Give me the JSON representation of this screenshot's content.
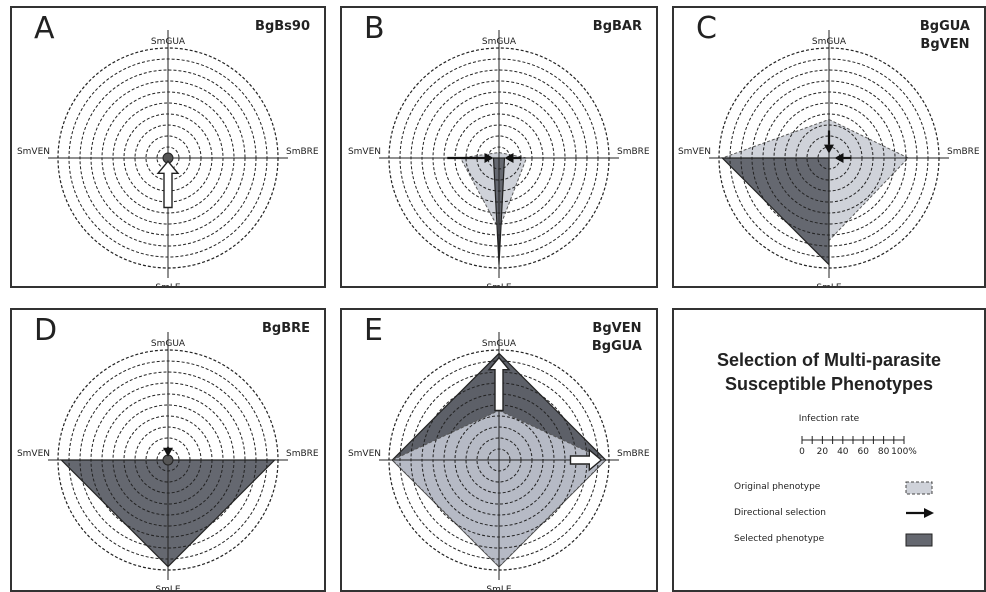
{
  "axes": {
    "top": "SmGUA",
    "left": "SmVEN",
    "right": "SmBRE",
    "bottom": "SmLE"
  },
  "panels": [
    {
      "letter": "A",
      "codes": [
        "BgBs90"
      ],
      "original": [
        0.03,
        0.03,
        0.03,
        0.03
      ],
      "selected": [
        0,
        0,
        0,
        0
      ],
      "arrows": [
        {
          "axis": "bottom",
          "from": 0.45,
          "to": 0.03,
          "style": "outline",
          "width": "thick"
        }
      ],
      "center_dot": true
    },
    {
      "letter": "B",
      "codes": [
        "BgBAR"
      ],
      "original": [
        0.05,
        0.35,
        0.25,
        0.65
      ],
      "selected": [
        0,
        0.05,
        0.05,
        0.97
      ],
      "arrows": [
        {
          "axis": "left",
          "from": 0.47,
          "to": 0.05,
          "style": "solid",
          "width": "thin"
        },
        {
          "axis": "right",
          "from": 0.2,
          "to": 0.05,
          "style": "solid",
          "width": "thin"
        }
      ],
      "center_dot": false
    },
    {
      "letter": "C",
      "codes": [
        "BgGUA",
        "BgVEN"
      ],
      "original": [
        0.35,
        0.97,
        0.72,
        0.75
      ],
      "selected": [
        0,
        0.97,
        0,
        0.97
      ],
      "arrows": [
        {
          "axis": "top",
          "from": 0.25,
          "to": 0.04,
          "style": "solid",
          "width": "thin"
        },
        {
          "axis": "right",
          "from": 0.2,
          "to": 0.05,
          "style": "solid",
          "width": "thin"
        }
      ],
      "center_dot": false
    },
    {
      "letter": "D",
      "codes": [
        "BgBRE"
      ],
      "original": [
        0.03,
        0.03,
        0.03,
        0.03
      ],
      "selected": [
        0,
        0.97,
        0.97,
        0.97
      ],
      "arrows": [
        {
          "axis": "top",
          "from": 0.12,
          "to": 0.03,
          "style": "solid",
          "width": "thin"
        }
      ],
      "center_dot": true
    },
    {
      "letter": "E",
      "codes": [
        "BgVEN",
        "BgGUA"
      ],
      "original": [
        0.45,
        0.97,
        0.97,
        0.97
      ],
      "selected": [
        0.97,
        0.97,
        0.97,
        0.97
      ],
      "arrows": [
        {
          "axis": "top",
          "from": 0.45,
          "to": 0.93,
          "style": "outline",
          "width": "thick"
        },
        {
          "axis": "right",
          "from": 0.65,
          "to": 0.93,
          "style": "outline",
          "width": "thick"
        }
      ],
      "center_dot": false
    }
  ],
  "legend": {
    "title_lines": [
      "Selection of Multi-parasite",
      "Susceptible Phenotypes"
    ],
    "scale_title": "Infection rate",
    "scale_ticks": [
      "0",
      "20",
      "40",
      "60",
      "80",
      "100%"
    ],
    "items": [
      {
        "label": "Original phenotype",
        "kind": "original"
      },
      {
        "label": "Directional selection",
        "kind": "arrow"
      },
      {
        "label": "Selected phenotype",
        "kind": "selected"
      }
    ]
  },
  "colors": {
    "original_fill": "#cfd2d9",
    "selected_fill": "#656870",
    "e_selected_fill": "#5d6068",
    "e_original_fill": "#b6bac5",
    "ring": "#222222"
  }
}
